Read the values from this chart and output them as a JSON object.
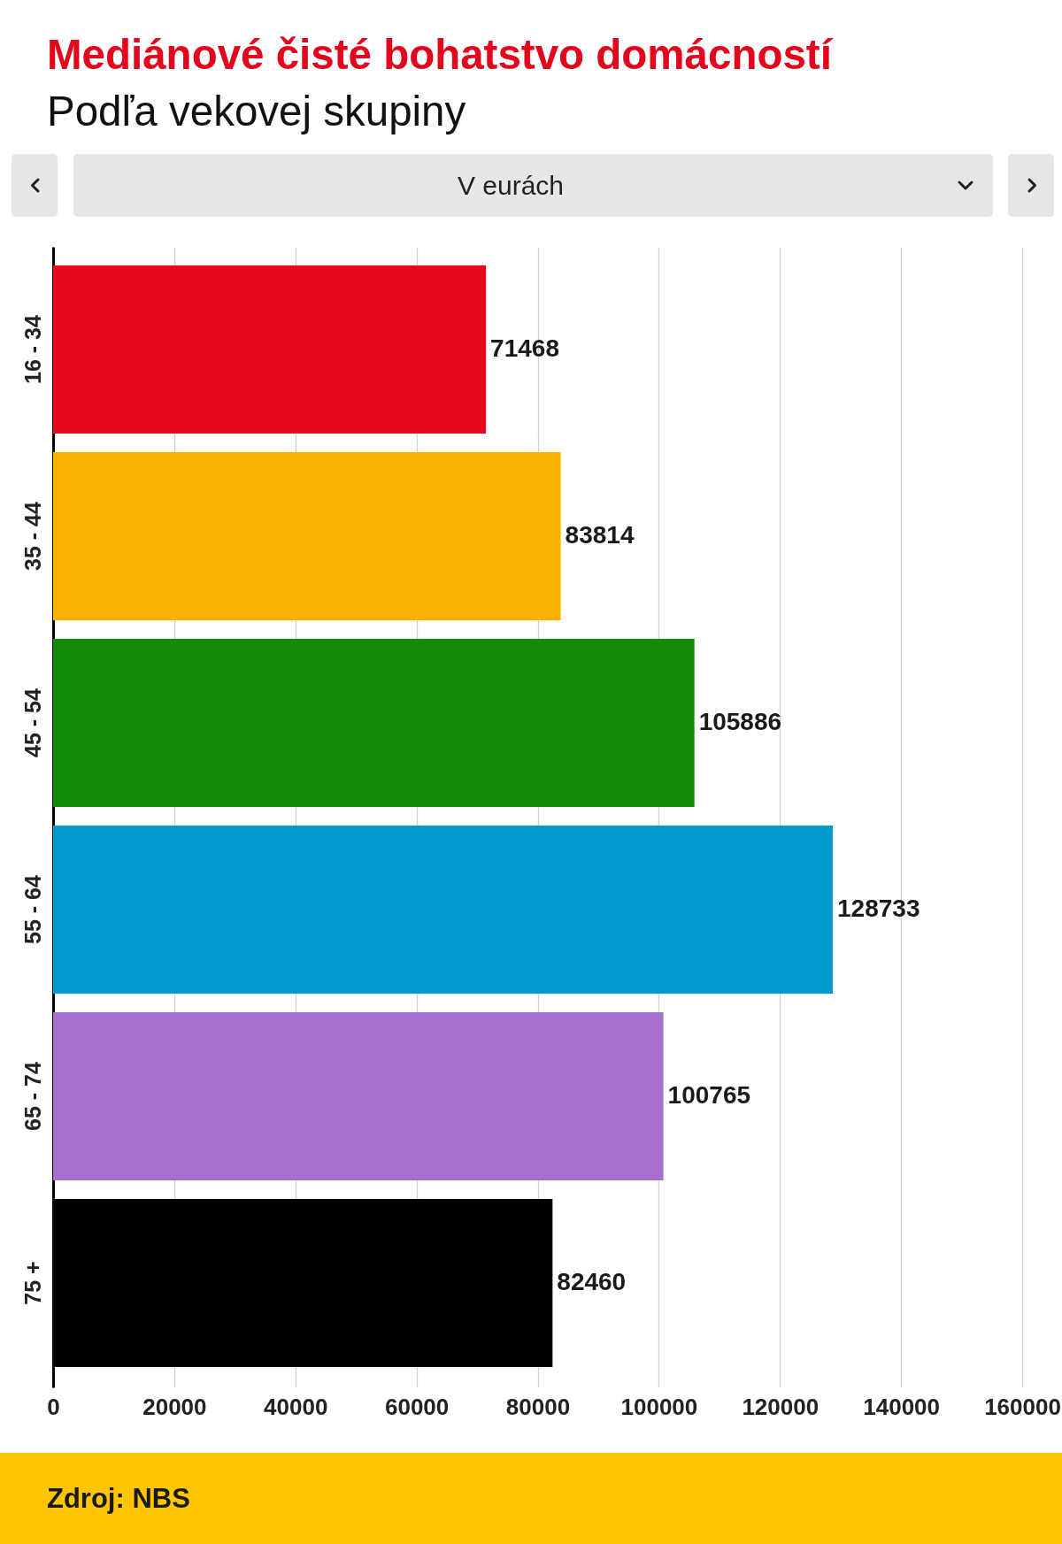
{
  "chart_data": {
    "type": "bar",
    "title": "Mediánové čisté bohatstvo domácností",
    "subtitle": "Podľa vekovej skupiny",
    "categories": [
      "16 - 34",
      "35 - 44",
      "45 - 54",
      "55 - 64",
      "65 - 74",
      "75 +"
    ],
    "values": [
      71468,
      83814,
      105886,
      128733,
      100765,
      82460
    ],
    "colors": [
      "#e8091e",
      "#f7b200",
      "#138a09",
      "#0099cb",
      "#a66ecd",
      "#000000"
    ],
    "orientation": "horizontal",
    "xlim": [
      0,
      160000
    ],
    "xticks": [
      0,
      20000,
      40000,
      60000,
      80000,
      100000,
      120000,
      140000,
      160000
    ],
    "grid": "x",
    "data_labels": true,
    "annotations": [
      "V eurách",
      "Zdroj: NBS"
    ]
  }
}
